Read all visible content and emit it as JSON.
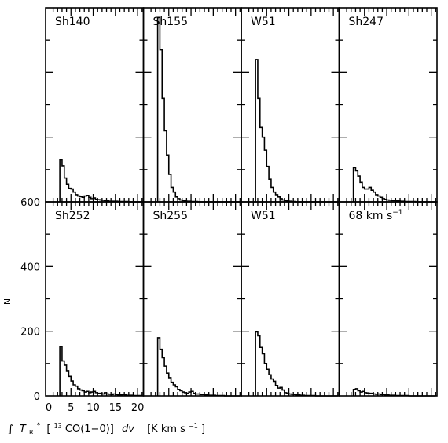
{
  "chart_data": {
    "type": "bar",
    "layout": "histogram grid, 2 rows x 4 columns, shared axes",
    "xlabel_parts": {
      "integral": "∫",
      "T": "T",
      "T_sub": "R",
      "T_sup": "*",
      "bracket_open": "[",
      "isotope": "13",
      "species": "CO(1−0)]",
      "dv": "dv",
      "unit_open": "[K km s",
      "unit_exp": "−1",
      "unit_close": "]"
    },
    "ylabel": "N",
    "xlim": [
      -0.7,
      21.3
    ],
    "ylim": [
      0,
      600
    ],
    "xticks": [
      "0",
      "5",
      "10",
      "15",
      "20"
    ],
    "yticks": [
      "0",
      "200",
      "400",
      "600"
    ],
    "bin_width": 0.5,
    "bin_start": 2.5,
    "panels": [
      {
        "label": "Sh140",
        "counts": [
          130,
          112,
          74,
          55,
          42,
          40,
          30,
          22,
          18,
          16,
          14,
          18,
          20,
          14,
          10,
          12,
          8,
          7,
          6,
          5,
          4,
          3,
          2,
          2,
          2,
          2,
          1,
          1,
          1,
          1,
          1,
          0,
          0,
          0,
          0,
          0,
          0
        ]
      },
      {
        "label": "Sh155",
        "counts": [
          570,
          470,
          320,
          220,
          145,
          85,
          45,
          30,
          15,
          10,
          6,
          4,
          3,
          2,
          2,
          1,
          1,
          1,
          0,
          0,
          0,
          0,
          0,
          0,
          0,
          0,
          0,
          0,
          0,
          0,
          0,
          0,
          0,
          0,
          0,
          0,
          0
        ]
      },
      {
        "label": "W51",
        "counts": [
          440,
          320,
          230,
          200,
          160,
          110,
          70,
          45,
          30,
          22,
          15,
          10,
          6,
          4,
          3,
          2,
          1,
          1,
          0,
          0,
          0,
          0,
          0,
          0,
          0,
          0,
          0,
          0,
          0,
          0,
          0,
          0,
          0,
          0,
          0,
          0,
          0
        ]
      },
      {
        "label": "Sh247",
        "counts": [
          106,
          96,
          80,
          60,
          45,
          40,
          40,
          45,
          36,
          30,
          22,
          18,
          14,
          10,
          8,
          6,
          5,
          4,
          4,
          3,
          3,
          2,
          2,
          1,
          1,
          1,
          1,
          1,
          0,
          0,
          0,
          0,
          0,
          0,
          0,
          0,
          0
        ]
      },
      {
        "label": "Sh252",
        "counts": [
          153,
          108,
          95,
          78,
          60,
          46,
          34,
          30,
          22,
          18,
          16,
          12,
          14,
          10,
          12,
          14,
          10,
          8,
          8,
          6,
          10,
          6,
          5,
          4,
          6,
          4,
          3,
          3,
          4,
          3,
          2,
          2,
          2,
          1,
          1,
          1,
          1
        ]
      },
      {
        "label": "Sh255",
        "counts": [
          180,
          144,
          118,
          92,
          70,
          56,
          42,
          34,
          28,
          20,
          16,
          12,
          10,
          8,
          12,
          14,
          8,
          6,
          6,
          4,
          4,
          3,
          3,
          2,
          2,
          2,
          1,
          1,
          1,
          1,
          0,
          0,
          0,
          0,
          0,
          0,
          0
        ]
      },
      {
        "label": "W51",
        "counts": [
          198,
          186,
          150,
          130,
          100,
          82,
          65,
          52,
          45,
          32,
          24,
          26,
          18,
          10,
          8,
          6,
          5,
          4,
          3,
          3,
          2,
          2,
          1,
          1,
          1,
          1,
          1,
          0,
          0,
          0,
          0,
          0,
          0,
          0,
          0,
          0,
          0
        ]
      },
      {
        "label_main": "68 km s",
        "label_exp": "−1",
        "counts": [
          20,
          22,
          16,
          12,
          14,
          10,
          9,
          8,
          8,
          6,
          5,
          6,
          4,
          4,
          3,
          3,
          2,
          2,
          2,
          1,
          1,
          1,
          1,
          1,
          1,
          0,
          0,
          0,
          0,
          0,
          0,
          0,
          0,
          0,
          0,
          0,
          0
        ]
      }
    ]
  }
}
